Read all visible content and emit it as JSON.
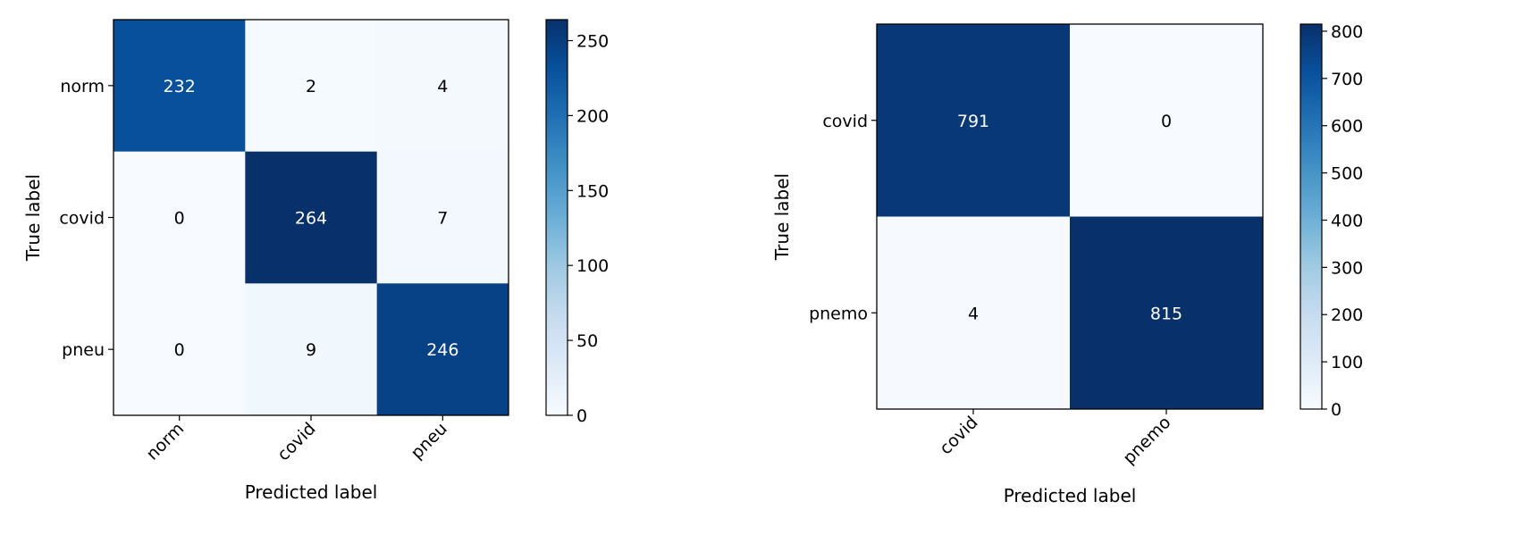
{
  "chart_data": [
    {
      "type": "heatmap",
      "colormap": "Blues",
      "xlabel": "Predicted label",
      "ylabel": "True label",
      "categories_x": [
        "norm",
        "covid",
        "pneu"
      ],
      "categories_y": [
        "norm",
        "covid",
        "pneu"
      ],
      "matrix": [
        [
          232,
          2,
          4
        ],
        [
          0,
          264,
          7
        ],
        [
          0,
          9,
          246
        ]
      ],
      "colorbar": {
        "min": 0,
        "max": 264,
        "ticks": [
          0,
          50,
          100,
          150,
          200,
          250
        ]
      },
      "text_color_dark_cells": "#ffffff",
      "text_color_light_cells": "#000000"
    },
    {
      "type": "heatmap",
      "colormap": "Blues",
      "xlabel": "Predicted label",
      "ylabel": "True label",
      "categories_x": [
        "covid",
        "pnemo"
      ],
      "categories_y": [
        "covid",
        "pnemo"
      ],
      "matrix": [
        [
          791,
          0
        ],
        [
          4,
          815
        ]
      ],
      "colorbar": {
        "min": 0,
        "max": 815,
        "ticks": [
          0,
          100,
          200,
          300,
          400,
          500,
          600,
          700,
          800
        ]
      },
      "text_color_dark_cells": "#ffffff",
      "text_color_light_cells": "#000000"
    }
  ]
}
